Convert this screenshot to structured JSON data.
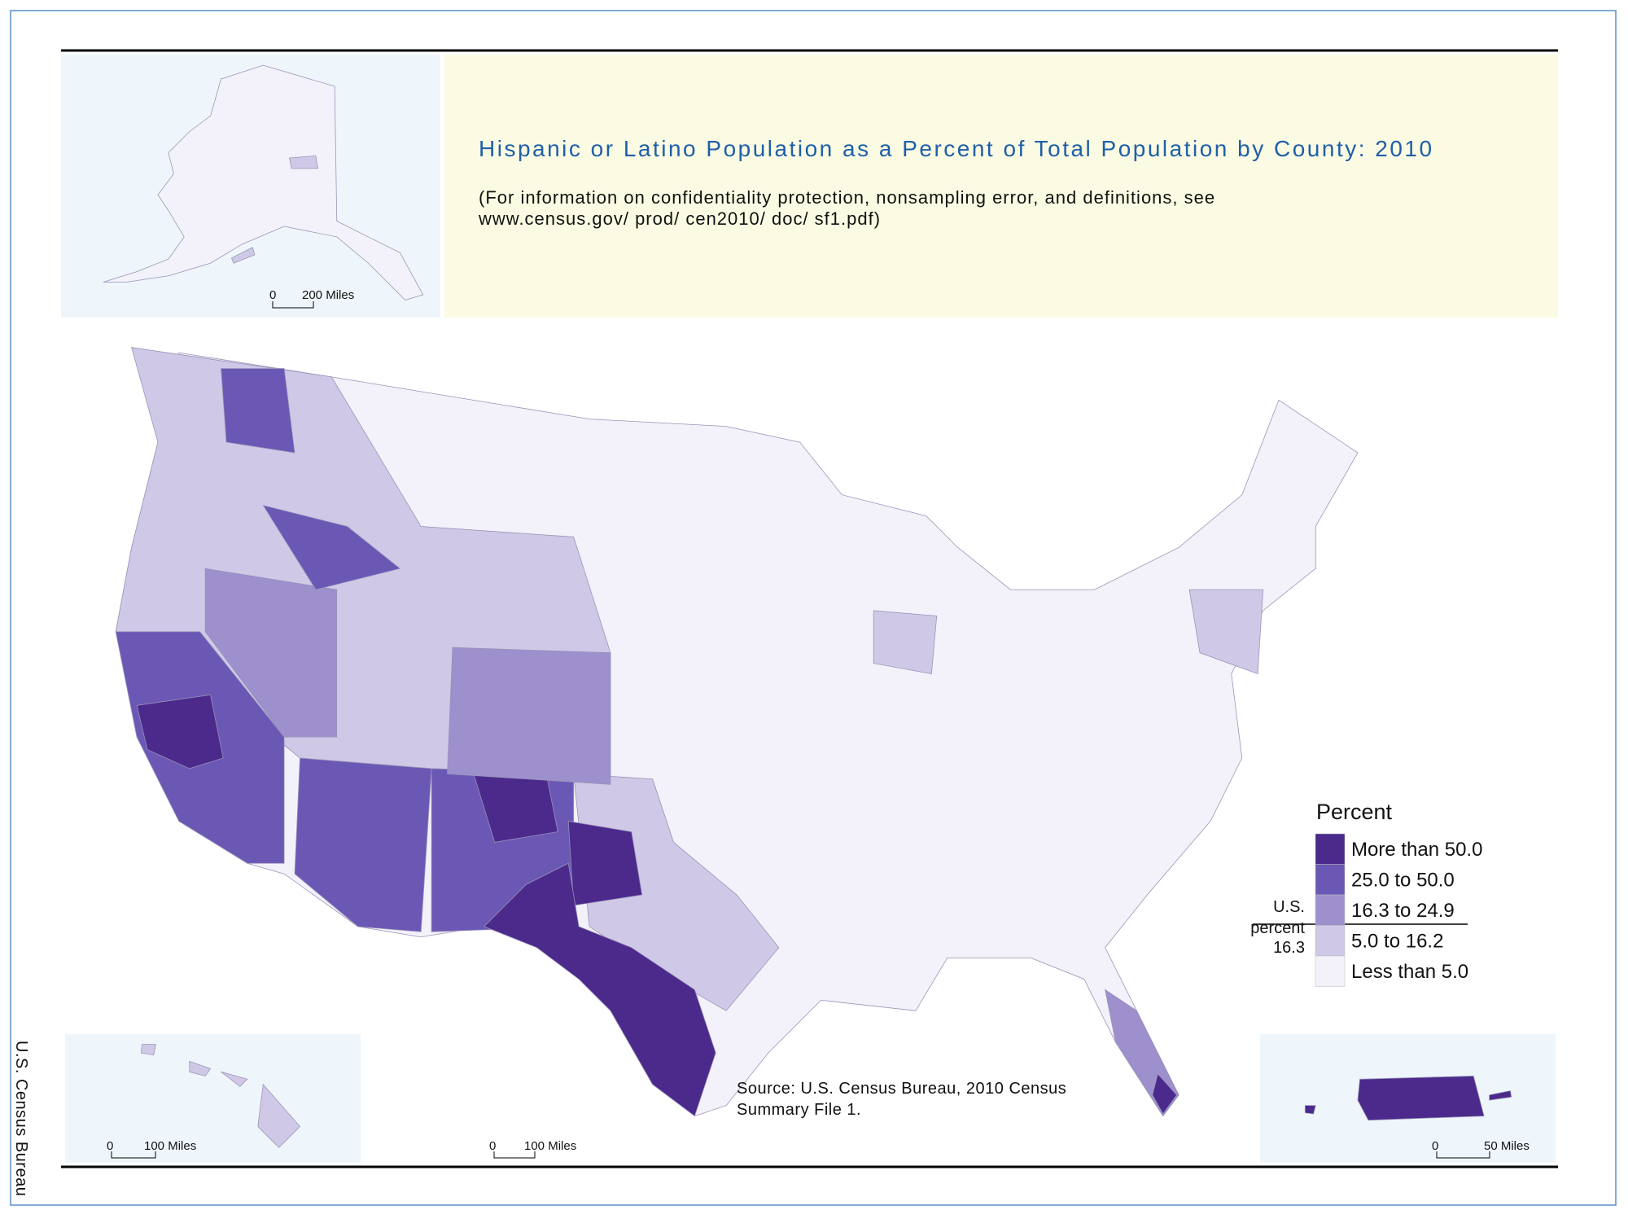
{
  "title": "Hispanic or Latino Population as a Percent of Total Population by County: 2010",
  "subtitle": [
    "(For information on confidentiality protection, nonsampling error, and definitions, see",
    "www.census.gov/ prod/ cen2010/ doc/ sf1.pdf)"
  ],
  "legend": {
    "title": "Percent",
    "items": [
      {
        "label": "More than 50.0",
        "color": "#4b2a8c"
      },
      {
        "label": "25.0 to 50.0",
        "color": "#6b58b5"
      },
      {
        "label": "16.3 to 24.9",
        "color": "#9d90cc"
      },
      {
        "label": "5.0 to 16.2",
        "color": "#cfc8e7"
      },
      {
        "label": "Less than 5.0",
        "color": "#f3f1f9"
      }
    ],
    "us_percent": [
      "U.S.",
      "percent",
      "16.3"
    ]
  },
  "scale_bars": {
    "alaska": {
      "zero": "0",
      "label": "200 Miles"
    },
    "hawaii": {
      "zero": "0",
      "label": "100 Miles"
    },
    "conus": {
      "zero": "0",
      "label": "100 Miles"
    },
    "puerto_rico": {
      "zero": "0",
      "label": "50 Miles"
    }
  },
  "source": [
    "Source:  U.S. Census Bureau, 2010 Census",
    "Summary File 1."
  ],
  "agency": "U.S. Census Bureau"
}
